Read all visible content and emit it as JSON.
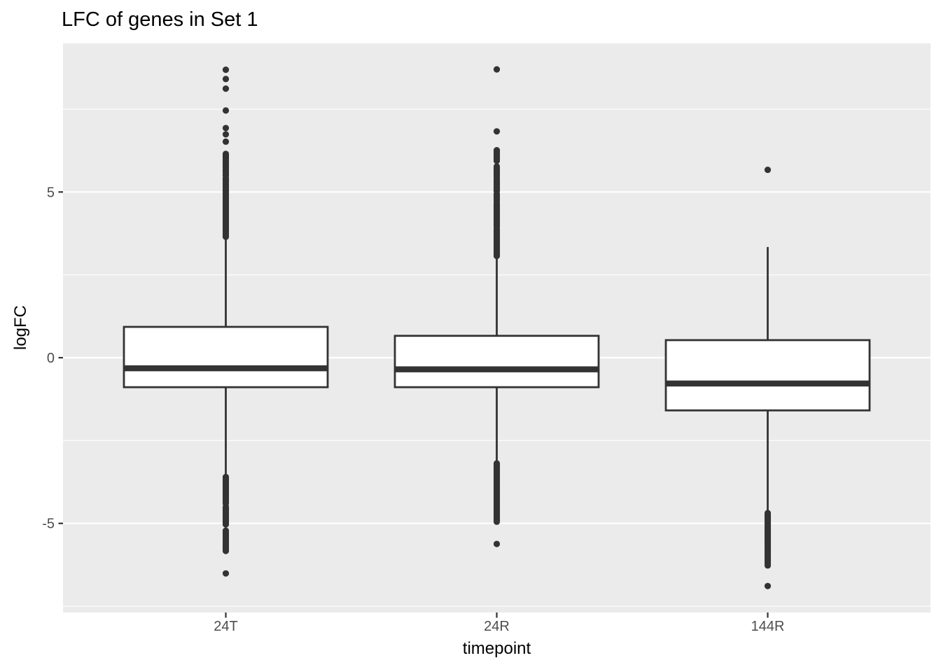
{
  "title": "LFC of genes in Set 1",
  "chart_data": {
    "type": "boxplot",
    "title": "LFC of genes in Set 1",
    "xlabel": "timepoint",
    "ylabel": "logFC",
    "categories": [
      "24T",
      "24R",
      "144R"
    ],
    "y_axis": {
      "major_ticks": [
        5,
        0,
        -5
      ],
      "major_tick_labels": [
        "5",
        "0",
        "-5"
      ],
      "minor_ticks": [
        7.5,
        2.5,
        -2.5,
        -7.5
      ],
      "ylim": [
        -7.7,
        9.5
      ],
      "grid": "on"
    },
    "series": [
      {
        "name": "24T",
        "q1": -0.89,
        "median": -0.32,
        "q3": 0.93,
        "whisker_low": -3.53,
        "whisker_high": 3.6,
        "outlier_singles": [
          8.69,
          8.41,
          8.12,
          7.46,
          6.93,
          6.74,
          6.52,
          -6.51
        ],
        "outlier_runs": [
          [
            6.15,
            5.75
          ],
          [
            5.68,
            5.5
          ],
          [
            5.43,
            3.65
          ],
          [
            -3.6,
            -4.4
          ],
          [
            -4.5,
            -5.03
          ],
          [
            -5.22,
            -5.83
          ]
        ]
      },
      {
        "name": "24R",
        "q1": -0.89,
        "median": -0.35,
        "q3": 0.66,
        "whisker_low": -3.15,
        "whisker_high": 3.0,
        "outlier_singles": [
          8.7,
          6.83,
          -5.62
        ],
        "outlier_runs": [
          [
            6.26,
            5.94
          ],
          [
            5.77,
            5.45
          ],
          [
            5.37,
            5.03
          ],
          [
            4.94,
            4.72
          ],
          [
            4.65,
            3.95
          ],
          [
            3.88,
            3.07
          ],
          [
            -3.19,
            -4.63
          ],
          [
            -4.67,
            -4.95
          ]
        ]
      },
      {
        "name": "144R",
        "q1": -1.59,
        "median": -0.78,
        "q3": 0.53,
        "whisker_low": -4.67,
        "whisker_high": 3.34,
        "outlier_singles": [
          5.67,
          -6.89
        ],
        "outlier_runs": [
          [
            -4.69,
            -5.03
          ],
          [
            -5.08,
            -5.42
          ],
          [
            -5.47,
            -5.8
          ],
          [
            -5.86,
            -6.27
          ]
        ]
      }
    ],
    "style": {
      "panel_bg": "#EBEBEB",
      "grid_color": "#FFFFFF",
      "box_stroke": "#333333",
      "box_fill": "#FFFFFF",
      "tick_label_color": "#4D4D4D",
      "axis_tick_color": "#333333",
      "text_color": "#000000"
    }
  }
}
